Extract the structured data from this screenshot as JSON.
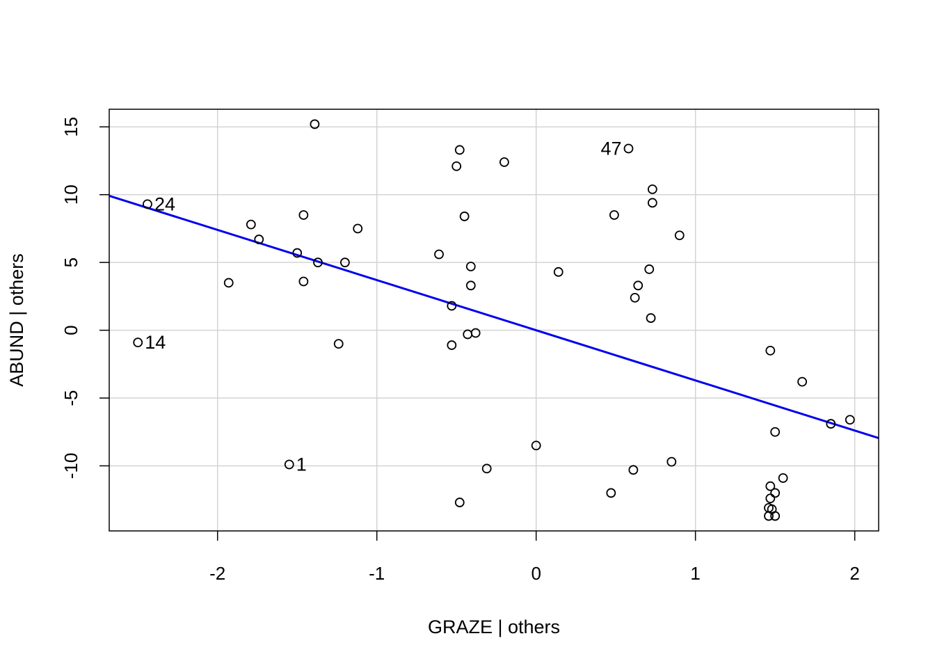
{
  "chart_data": {
    "type": "scatter",
    "xlabel": "GRAZE | others",
    "ylabel": "ABUND  | others",
    "xlim": [
      -2.68,
      2.15
    ],
    "ylim": [
      -14.8,
      16.3
    ],
    "x_ticks": [
      -2,
      -1,
      0,
      1,
      2
    ],
    "y_ticks": [
      -10,
      -5,
      0,
      5,
      10,
      15
    ],
    "grid": true,
    "colors": {
      "points": "#000000",
      "fit_line": "#0000ee",
      "grid": "#d3d3d3",
      "frame": "#000000"
    },
    "points": [
      {
        "x": -1.39,
        "y": 15.2
      },
      {
        "x": -0.48,
        "y": 13.3
      },
      {
        "x": -0.5,
        "y": 12.1
      },
      {
        "x": -0.2,
        "y": 12.4
      },
      {
        "x": 0.58,
        "y": 13.4,
        "label": "47"
      },
      {
        "x": 0.73,
        "y": 10.4
      },
      {
        "x": 0.73,
        "y": 9.4
      },
      {
        "x": -2.44,
        "y": 9.3,
        "label": "24"
      },
      {
        "x": -1.46,
        "y": 8.5
      },
      {
        "x": -0.45,
        "y": 8.4
      },
      {
        "x": 0.49,
        "y": 8.5
      },
      {
        "x": -1.79,
        "y": 7.8
      },
      {
        "x": -1.12,
        "y": 7.5
      },
      {
        "x": 0.9,
        "y": 7.0
      },
      {
        "x": -1.74,
        "y": 6.7
      },
      {
        "x": -1.5,
        "y": 5.7
      },
      {
        "x": -0.61,
        "y": 5.6
      },
      {
        "x": -1.37,
        "y": 5.0
      },
      {
        "x": -1.2,
        "y": 5.0
      },
      {
        "x": -0.41,
        "y": 4.7
      },
      {
        "x": 0.71,
        "y": 4.5
      },
      {
        "x": 0.14,
        "y": 4.3
      },
      {
        "x": -1.93,
        "y": 3.5
      },
      {
        "x": -1.46,
        "y": 3.6
      },
      {
        "x": -0.41,
        "y": 3.3
      },
      {
        "x": 0.64,
        "y": 3.3
      },
      {
        "x": 0.62,
        "y": 2.4
      },
      {
        "x": -0.53,
        "y": 1.8
      },
      {
        "x": 0.72,
        "y": 0.9
      },
      {
        "x": -0.43,
        "y": -0.3
      },
      {
        "x": -0.38,
        "y": -0.2
      },
      {
        "x": -2.5,
        "y": -0.9,
        "label": "14"
      },
      {
        "x": -1.24,
        "y": -1.0
      },
      {
        "x": -0.53,
        "y": -1.1
      },
      {
        "x": 1.47,
        "y": -1.5
      },
      {
        "x": 1.67,
        "y": -3.8
      },
      {
        "x": 1.85,
        "y": -6.9
      },
      {
        "x": 1.97,
        "y": -6.6
      },
      {
        "x": 1.5,
        "y": -7.5
      },
      {
        "x": 0.0,
        "y": -8.5
      },
      {
        "x": -1.55,
        "y": -9.9,
        "label": "1"
      },
      {
        "x": 0.85,
        "y": -9.7
      },
      {
        "x": -0.31,
        "y": -10.2
      },
      {
        "x": 0.61,
        "y": -10.3
      },
      {
        "x": 1.55,
        "y": -10.9
      },
      {
        "x": 1.47,
        "y": -11.5
      },
      {
        "x": 1.5,
        "y": -12.0
      },
      {
        "x": 0.47,
        "y": -12.0
      },
      {
        "x": 1.47,
        "y": -12.4
      },
      {
        "x": -0.48,
        "y": -12.7
      },
      {
        "x": 1.46,
        "y": -13.1
      },
      {
        "x": 1.48,
        "y": -13.2
      },
      {
        "x": 1.46,
        "y": -13.7
      },
      {
        "x": 1.5,
        "y": -13.7
      }
    ],
    "fit_line": {
      "intercept": 0.0,
      "slope": -3.7
    }
  }
}
